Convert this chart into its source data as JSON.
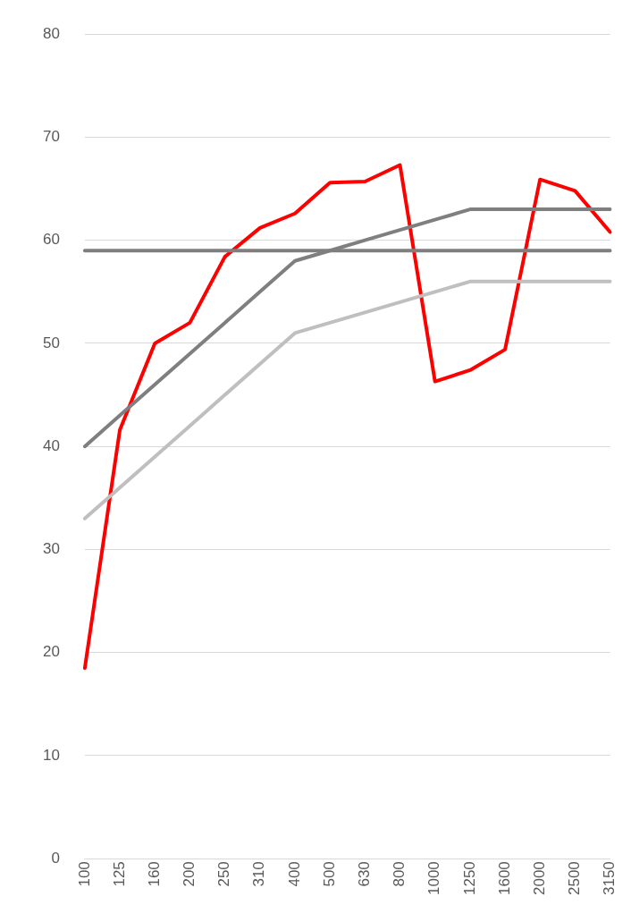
{
  "chart_data": {
    "type": "line",
    "categories": [
      "100",
      "125",
      "160",
      "200",
      "250",
      "310",
      "400",
      "500",
      "630",
      "800",
      "1000",
      "1250",
      "1600",
      "2000",
      "2500",
      "3150"
    ],
    "series": [
      {
        "color": "#7f7f7f",
        "values": [
          59,
          59,
          59,
          59,
          59,
          59,
          59,
          59,
          59,
          59,
          59,
          59,
          59,
          59,
          59,
          59
        ]
      },
      {
        "color": "#7f7f7f",
        "values": [
          40,
          43,
          46,
          49,
          52,
          55,
          58,
          59,
          60,
          61,
          62,
          63,
          63,
          63,
          63,
          63
        ]
      },
      {
        "color": "#bfbfbf",
        "values": [
          33,
          36,
          39,
          42,
          45,
          48,
          51,
          52,
          53,
          54,
          55,
          56,
          56,
          56,
          56,
          56
        ]
      },
      {
        "color": "#ff0000",
        "values": [
          18.5,
          41.6,
          50,
          52,
          58.4,
          61.2,
          62.6,
          65.6,
          65.7,
          67.3,
          46.3,
          47.4,
          49.4,
          65.9,
          64.8,
          60.8
        ]
      }
    ],
    "ylim": [
      0,
      80
    ],
    "yticks": [
      0,
      10,
      20,
      30,
      40,
      50,
      60,
      70,
      80
    ],
    "grid": "y",
    "legend": false,
    "marker": "none",
    "line_style": "solid"
  }
}
